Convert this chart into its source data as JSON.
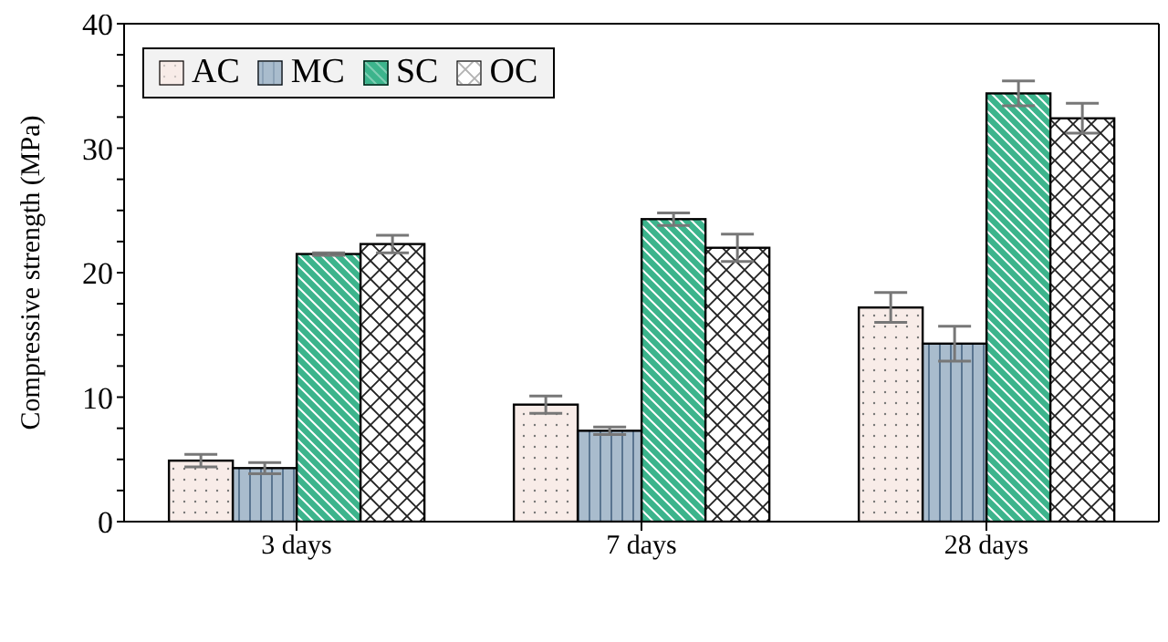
{
  "chart_data": {
    "type": "bar",
    "ylabel": "Compressive strength (MPa)",
    "categories": [
      "3 days",
      "7 days",
      "28 days"
    ],
    "series": [
      {
        "name": "AC",
        "color": "#f8ece8",
        "values": [
          4.9,
          9.4,
          17.2
        ],
        "errors": [
          0.5,
          0.7,
          1.2
        ]
      },
      {
        "name": "MC",
        "color": "#a9bccd",
        "values": [
          4.3,
          7.3,
          14.3
        ],
        "errors": [
          0.45,
          0.3,
          1.4
        ]
      },
      {
        "name": "SC",
        "color": "#3cb48c",
        "values": [
          21.5,
          24.3,
          34.4
        ],
        "errors": [
          0.1,
          0.5,
          1.0
        ]
      },
      {
        "name": "OC",
        "color": "#ffffff",
        "values": [
          22.3,
          22.0,
          32.4
        ],
        "errors": [
          0.7,
          1.1,
          1.2
        ]
      }
    ],
    "ylim": [
      0,
      40
    ],
    "yticks": [
      0,
      {
        "value": 2.5,
        "label": null
      },
      10,
      {
        "value": 7.5,
        "label": null
      },
      {
        "value": 5,
        "label": null
      },
      {
        "value": 12.5,
        "label": null
      },
      {
        "value": 15,
        "label": null
      },
      {
        "value": 17.5,
        "label": null
      },
      20,
      {
        "value": 22.5,
        "label": null
      },
      {
        "value": 25,
        "label": null
      },
      {
        "value": 27.5,
        "label": null
      },
      30,
      {
        "value": 32.5,
        "label": null
      },
      {
        "value": 35,
        "label": null
      },
      {
        "value": 37.5,
        "label": null
      },
      40
    ],
    "grid": false,
    "legend": "top left"
  }
}
